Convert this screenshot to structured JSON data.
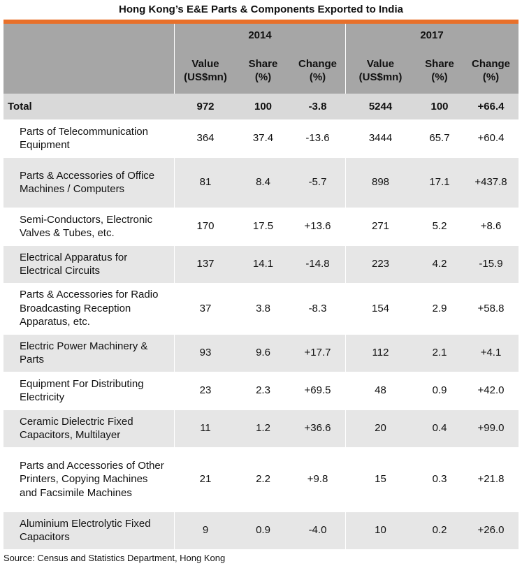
{
  "chart_data": {
    "type": "table",
    "title": "Hong Kong’s E&E Parts & Components Exported to India",
    "years": [
      "2014",
      "2017"
    ],
    "column_headers": [
      "Value (US$mn)",
      "Share (%)",
      "Change (%)",
      "Value (US$mn)",
      "Share (%)",
      "Change (%)"
    ],
    "total": {
      "label": "Total",
      "values": [
        "972",
        "100",
        "-3.8",
        "5244",
        "100",
        "+66.4"
      ]
    },
    "rows": [
      {
        "label": "Parts of Telecommunication Equipment",
        "values": [
          "364",
          "37.4",
          "-13.6",
          "3444",
          "65.7",
          "+60.4"
        ]
      },
      {
        "label": "Parts & Accessories of Office Machines / Computers",
        "values": [
          "81",
          "8.4",
          "-5.7",
          "898",
          "17.1",
          "+437.8"
        ]
      },
      {
        "label": "Semi-Conductors, Electronic Valves & Tubes, etc.",
        "values": [
          "170",
          "17.5",
          "+13.6",
          "271",
          "5.2",
          "+8.6"
        ]
      },
      {
        "label": "Electrical Apparatus for Electrical Circuits",
        "values": [
          "137",
          "14.1",
          "-14.8",
          "223",
          "4.2",
          "-15.9"
        ]
      },
      {
        "label": "Parts & Accessories for Radio Broadcasting Reception Apparatus, etc.",
        "values": [
          "37",
          "3.8",
          "-8.3",
          "154",
          "2.9",
          "+58.8"
        ]
      },
      {
        "label": "Electric Power Machinery & Parts",
        "values": [
          "93",
          "9.6",
          "+17.7",
          "112",
          "2.1",
          "+4.1"
        ]
      },
      {
        "label": "Equipment For Distributing Electricity",
        "values": [
          "23",
          "2.3",
          "+69.5",
          "48",
          "0.9",
          "+42.0"
        ]
      },
      {
        "label": "Ceramic Dielectric Fixed Capacitors, Multilayer",
        "values": [
          "11",
          "1.2",
          "+36.6",
          "20",
          "0.4",
          "+99.0"
        ]
      },
      {
        "label": "Parts and Accessories of Other Printers, Copying Machines and Facsimile Machines",
        "values": [
          "21",
          "2.2",
          "+9.8",
          "15",
          "0.3",
          "+21.8"
        ]
      },
      {
        "label": "Aluminium Electrolytic Fixed Capacitors",
        "values": [
          "9",
          "0.9",
          "-4.0",
          "10",
          "0.2",
          "+26.0"
        ]
      }
    ],
    "source": "Source: Census and Statistics Department, Hong Kong",
    "colors": {
      "accent": "#E8702A",
      "header_fill": "#A6A6A6",
      "total_fill": "#D9D9D9",
      "stripe_fill": "#E6E6E6",
      "plain_fill": "#FFFFFF"
    }
  }
}
